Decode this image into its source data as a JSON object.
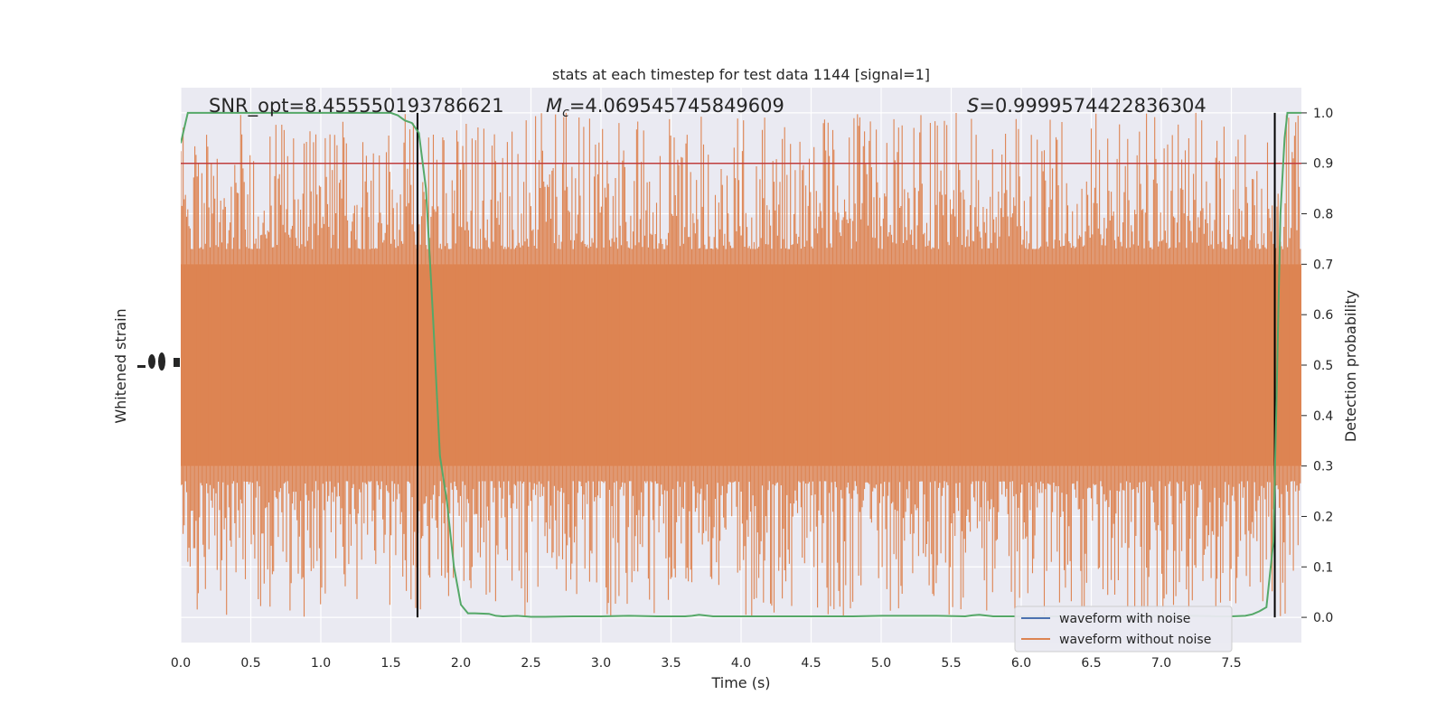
{
  "chart_data": {
    "type": "line",
    "title": "stats at each timestep for test data 1144 [signal=1]",
    "xlabel": "Time (s)",
    "ylabel_left": "Whitened strain",
    "ylabel_right": "Detection probability",
    "xlim": [
      0.0,
      8.0
    ],
    "ylim_right": [
      -0.05,
      1.05
    ],
    "x_ticks": [
      "0.0",
      "0.5",
      "1.0",
      "1.5",
      "2.0",
      "2.5",
      "3.0",
      "3.5",
      "4.0",
      "4.5",
      "5.0",
      "5.5",
      "6.0",
      "6.5",
      "7.0",
      "7.5"
    ],
    "y_right_ticks": [
      "0.0",
      "0.1",
      "0.2",
      "0.3",
      "0.4",
      "0.5",
      "0.6",
      "0.7",
      "0.8",
      "0.9",
      "1.0"
    ],
    "grid": true,
    "legend_position": "lower-right",
    "annotations": {
      "snr": {
        "prefix": "SNR_opt",
        "value": "=8.455550193786621"
      },
      "mc": {
        "symbol": "M",
        "sub": "c",
        "value": "=4.069545745849609"
      },
      "s": {
        "symbol": "S",
        "value": "=0.9999574422836304"
      }
    },
    "threshold": {
      "y": 0.9,
      "color": "#c03d3e"
    },
    "vertical_markers": [
      1.69,
      7.81
    ],
    "series": [
      {
        "name": "waveform with noise",
        "color": "#4c72b0"
      },
      {
        "name": "waveform without noise",
        "color": "#dd8452"
      }
    ],
    "noise_band": {
      "core_low": 0.3,
      "core_high": 0.7,
      "color": "#dd8452"
    },
    "detection_probability": {
      "color": "#55a868",
      "x": [
        0.0,
        0.05,
        0.1,
        0.2,
        0.3,
        0.4,
        0.5,
        0.6,
        0.7,
        0.8,
        0.9,
        1.0,
        1.1,
        1.2,
        1.3,
        1.4,
        1.5,
        1.55,
        1.6,
        1.65,
        1.7,
        1.75,
        1.8,
        1.85,
        1.9,
        1.95,
        2.0,
        2.05,
        2.1,
        2.2,
        2.25,
        2.3,
        2.4,
        2.5,
        2.6,
        2.8,
        3.0,
        3.2,
        3.4,
        3.6,
        3.65,
        3.7,
        3.8,
        4.0,
        4.2,
        4.4,
        4.6,
        4.8,
        5.0,
        5.2,
        5.4,
        5.6,
        5.65,
        5.7,
        5.8,
        6.0,
        6.2,
        6.5,
        6.7,
        6.9,
        7.0,
        7.2,
        7.4,
        7.5,
        7.6,
        7.65,
        7.7,
        7.75,
        7.8,
        7.82,
        7.85,
        7.88,
        7.9,
        7.92,
        8.0
      ],
      "y": [
        0.94,
        1.0,
        1.0,
        1.0,
        1.0,
        1.0,
        1.0,
        1.0,
        1.0,
        1.0,
        1.0,
        1.0,
        1.0,
        1.0,
        1.0,
        1.0,
        1.0,
        0.995,
        0.985,
        0.98,
        0.96,
        0.85,
        0.6,
        0.32,
        0.23,
        0.1,
        0.025,
        0.008,
        0.008,
        0.007,
        0.003,
        0.002,
        0.003,
        0.001,
        0.001,
        0.002,
        0.002,
        0.003,
        0.002,
        0.002,
        0.003,
        0.005,
        0.002,
        0.002,
        0.002,
        0.002,
        0.002,
        0.002,
        0.003,
        0.003,
        0.003,
        0.002,
        0.004,
        0.005,
        0.002,
        0.002,
        0.002,
        0.002,
        0.002,
        0.002,
        0.003,
        0.003,
        0.002,
        0.002,
        0.003,
        0.006,
        0.012,
        0.02,
        0.15,
        0.4,
        0.8,
        0.95,
        1.0,
        1.0,
        1.0
      ]
    }
  }
}
